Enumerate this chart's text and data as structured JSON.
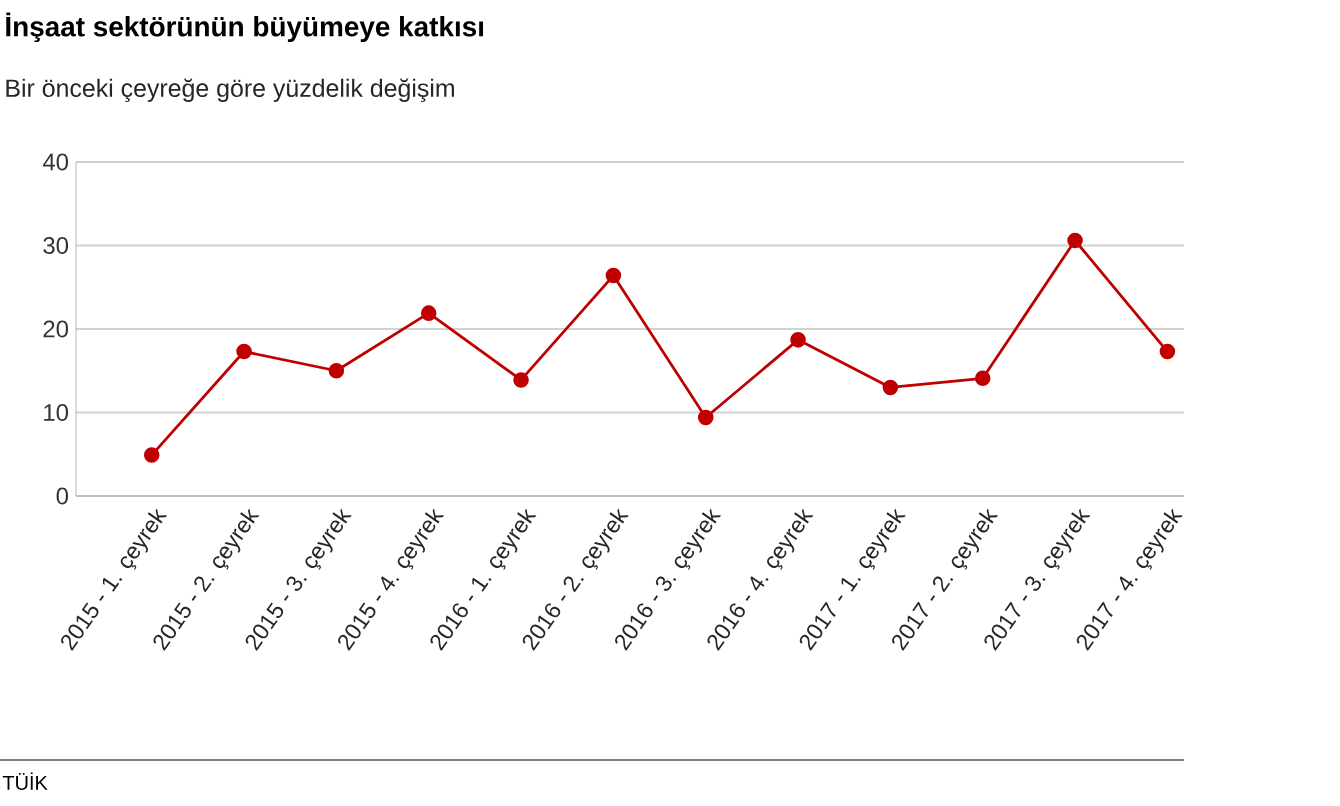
{
  "chart_data": {
    "type": "line",
    "title": "İnşaat sektörünün büyümeye katkısı",
    "subtitle": "Bir önceki çeyreğe göre yüzdelik değişim",
    "categories": [
      "2015 - 1. çeyrek",
      "2015 - 2. çeyrek",
      "2015 - 3. çeyrek",
      "2015 - 4. çeyrek",
      "2016 - 1. çeyrek",
      "2016 - 2. çeyrek",
      "2016 - 3. çeyrek",
      "2016 - 4. çeyrek",
      "2017 - 1. çeyrek",
      "2017 - 2. çeyrek",
      "2017 - 3. çeyrek",
      "2017 - 4. çeyrek"
    ],
    "series": [
      {
        "color": "#c00000",
        "values": [
          4.9,
          17.3,
          15.0,
          21.9,
          13.9,
          26.4,
          9.4,
          18.7,
          13.0,
          14.1,
          30.6,
          17.3
        ]
      }
    ],
    "ylim": [
      0,
      40
    ],
    "yticks": [
      0,
      10,
      20,
      30,
      40
    ],
    "grid": "y",
    "marker": "circle",
    "line_style": "solid",
    "annotations": [
      "TÜİK"
    ]
  }
}
